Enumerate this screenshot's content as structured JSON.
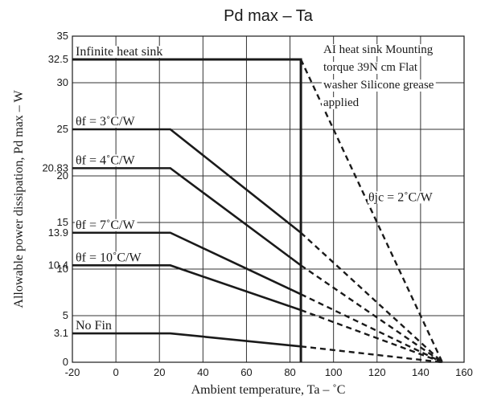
{
  "chart_data": {
    "type": "line",
    "title": "Pd max – Ta",
    "xlabel": "Ambient temperature, Ta – ˚C",
    "ylabel": "Allowable power dissipation, Pd max – W",
    "xlim": [
      -20,
      160
    ],
    "ylim": [
      0,
      35
    ],
    "x_ticks": [
      -20,
      0,
      20,
      40,
      60,
      80,
      100,
      120,
      140,
      160
    ],
    "y_ticks": [
      0,
      5,
      10,
      15,
      20,
      25,
      30,
      35
    ],
    "y_marked_values": [
      3.1,
      10.4,
      13.9,
      20.83,
      32.5
    ],
    "grid": true,
    "series": [
      {
        "name": "Infinite heat sink",
        "points": [
          [
            -20,
            32.5
          ],
          [
            85,
            32.5
          ],
          [
            85,
            0
          ]
        ],
        "extension": [
          [
            85,
            32.5
          ],
          [
            150,
            0
          ]
        ]
      },
      {
        "name": "θf = 3˚C/W",
        "points": [
          [
            -20,
            25
          ],
          [
            25,
            25
          ],
          [
            85,
            13.9
          ]
        ],
        "extension": [
          [
            85,
            13.9
          ],
          [
            150,
            0
          ]
        ]
      },
      {
        "name": "θf = 4˚C/W",
        "points": [
          [
            -20,
            20.83
          ],
          [
            25,
            20.83
          ],
          [
            85,
            10.4
          ]
        ],
        "extension": [
          [
            85,
            10.4
          ],
          [
            150,
            0
          ]
        ]
      },
      {
        "name": "θf = 7˚C/W",
        "points": [
          [
            -20,
            13.9
          ],
          [
            25,
            13.9
          ],
          [
            85,
            7.3
          ]
        ],
        "extension": [
          [
            85,
            7.3
          ],
          [
            150,
            0
          ]
        ]
      },
      {
        "name": "θf = 10˚C/W",
        "points": [
          [
            -20,
            10.4
          ],
          [
            25,
            10.4
          ],
          [
            85,
            5.6
          ]
        ],
        "extension": [
          [
            85,
            5.6
          ],
          [
            150,
            0
          ]
        ]
      },
      {
        "name": "No Fin",
        "points": [
          [
            -20,
            3.1
          ],
          [
            25,
            3.1
          ],
          [
            85,
            1.7
          ]
        ],
        "extension": [
          [
            85,
            1.7
          ],
          [
            150,
            0
          ]
        ]
      }
    ],
    "annotations": {
      "theta_jc": "θjc = 2˚C/W",
      "mounting_lines": [
        "AI heat sink Mounting",
        "torque 39N   cm Flat",
        "washer Silicone grease",
        " applied"
      ]
    }
  }
}
